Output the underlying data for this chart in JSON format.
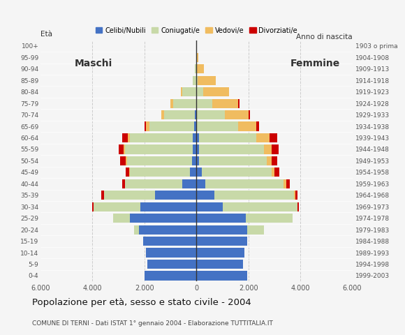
{
  "age_groups": [
    "0-4",
    "5-9",
    "10-14",
    "15-19",
    "20-24",
    "25-29",
    "30-34",
    "35-39",
    "40-44",
    "45-49",
    "50-54",
    "55-59",
    "60-64",
    "65-69",
    "70-74",
    "75-79",
    "80-84",
    "85-89",
    "90-94",
    "95-99",
    "100+"
  ],
  "birth_years": [
    "1999-2003",
    "1994-1998",
    "1989-1993",
    "1984-1988",
    "1979-1983",
    "1974-1978",
    "1969-1973",
    "1964-1968",
    "1959-1963",
    "1954-1958",
    "1949-1953",
    "1944-1948",
    "1939-1943",
    "1934-1938",
    "1929-1933",
    "1924-1928",
    "1919-1923",
    "1914-1918",
    "1909-1913",
    "1904-1908",
    "1903 o prima"
  ],
  "male": {
    "celibi": [
      2000,
      1900,
      1950,
      2050,
      2200,
      2550,
      2150,
      1600,
      550,
      250,
      180,
      150,
      150,
      100,
      50,
      0,
      0,
      0,
      0,
      0,
      0
    ],
    "coniugati": [
      0,
      0,
      0,
      0,
      200,
      650,
      1800,
      1950,
      2200,
      2300,
      2500,
      2600,
      2400,
      1700,
      1200,
      900,
      550,
      150,
      50,
      0,
      0
    ],
    "vedovi": [
      0,
      0,
      0,
      0,
      0,
      0,
      0,
      0,
      0,
      30,
      50,
      50,
      100,
      150,
      100,
      100,
      50,
      0,
      0,
      0,
      0
    ],
    "divorziati": [
      0,
      0,
      0,
      0,
      0,
      0,
      50,
      100,
      100,
      150,
      200,
      200,
      200,
      50,
      0,
      0,
      0,
      0,
      0,
      0,
      0
    ]
  },
  "female": {
    "celibi": [
      1950,
      1800,
      1850,
      1950,
      1950,
      1900,
      1000,
      700,
      350,
      200,
      100,
      100,
      100,
      0,
      0,
      0,
      0,
      0,
      0,
      0,
      0
    ],
    "coniugati": [
      0,
      0,
      0,
      0,
      650,
      1800,
      2900,
      3050,
      3000,
      2700,
      2600,
      2500,
      2200,
      1600,
      1100,
      600,
      250,
      50,
      0,
      0,
      0
    ],
    "vedovi": [
      0,
      0,
      0,
      0,
      0,
      0,
      0,
      50,
      100,
      100,
      200,
      300,
      500,
      700,
      900,
      1000,
      1000,
      700,
      300,
      80,
      30
    ],
    "divorziati": [
      0,
      0,
      0,
      0,
      0,
      0,
      50,
      100,
      150,
      200,
      200,
      250,
      300,
      100,
      50,
      50,
      0,
      0,
      0,
      0,
      0
    ]
  },
  "colors": {
    "celibi": "#4472C4",
    "coniugati": "#c8d9a8",
    "vedovi": "#f0bc60",
    "divorziati": "#cc0000"
  },
  "title": "Popolazione per età, sesso e stato civile - 2004",
  "subtitle": "COMUNE DI TERNI - Dati ISTAT 1° gennaio 2004 - Elaborazione TUTTITALIA.IT",
  "xlabel_left": "Maschi",
  "xlabel_right": "Femmine",
  "ylabel_age": "Età",
  "ylabel_birth": "Anno di nascita",
  "legend_labels": [
    "Celibi/Nubili",
    "Coniugati/e",
    "Vedovi/e",
    "Divorziati/e"
  ],
  "xlim": 6000,
  "xticks": [
    -6000,
    -4000,
    -2000,
    0,
    2000,
    4000,
    6000
  ],
  "xticklabels": [
    "6.000",
    "4.000",
    "2.000",
    "0",
    "2.000",
    "4.000",
    "6.000"
  ],
  "bg_color": "#f5f5f5",
  "plot_bg_color": "#f5f5f5",
  "grid_color": "#cccccc"
}
